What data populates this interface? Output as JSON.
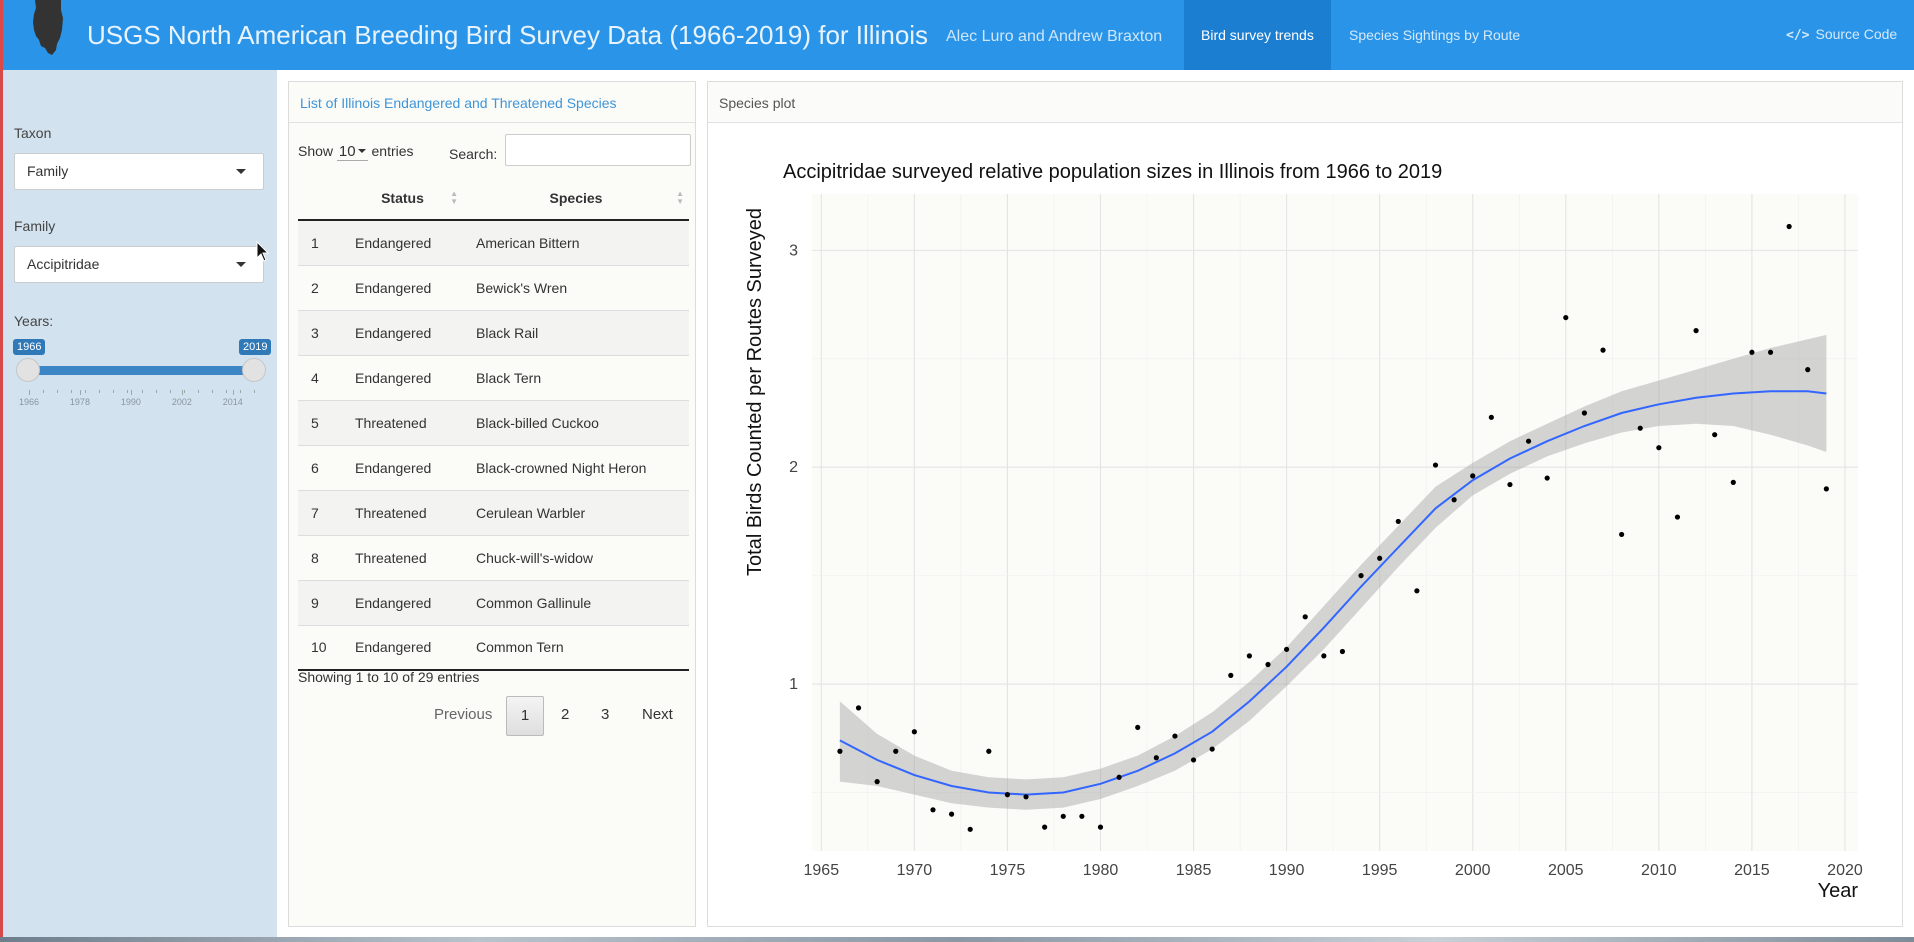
{
  "navbar": {
    "title": "USGS North American Breeding Bird Survey Data (1966-2019) for Illinois",
    "authors": "Alec Luro and Andrew Braxton",
    "tabs": [
      {
        "label": "Bird survey trends",
        "active": true
      },
      {
        "label": "Species Sightings by Route",
        "active": false
      }
    ],
    "source_label": "Source Code",
    "source_icon": "code-icon",
    "logo_icon": "illinois-state-icon",
    "colors": {
      "bar": "#2a95e8",
      "active_tab": "#1c7ed0"
    }
  },
  "sidebar": {
    "taxon_label": "Taxon",
    "taxon_value": "Family",
    "family_label": "Family",
    "family_value": "Accipitridae",
    "years_label": "Years:",
    "years_min": "1966",
    "years_max": "2019",
    "year_ticks": [
      "1966",
      "1978",
      "1990",
      "2002",
      "2014"
    ],
    "background": "#d2e2ef"
  },
  "species_table": {
    "heading": "List of Illinois Endangered and Threatened Species",
    "show_label": "Show",
    "page_length": "10",
    "entries_label": "entries",
    "search_label": "Search:",
    "search_value": "",
    "columns": [
      "",
      "Status",
      "Species"
    ],
    "rows": [
      [
        "1",
        "Endangered",
        "American Bittern"
      ],
      [
        "2",
        "Endangered",
        "Bewick's Wren"
      ],
      [
        "3",
        "Endangered",
        "Black Rail"
      ],
      [
        "4",
        "Endangered",
        "Black Tern"
      ],
      [
        "5",
        "Threatened",
        "Black-billed Cuckoo"
      ],
      [
        "6",
        "Endangered",
        "Black-crowned Night Heron"
      ],
      [
        "7",
        "Threatened",
        "Cerulean Warbler"
      ],
      [
        "8",
        "Threatened",
        "Chuck-will's-widow"
      ],
      [
        "9",
        "Endangered",
        "Common Gallinule"
      ],
      [
        "10",
        "Endangered",
        "Common Tern"
      ]
    ],
    "info": "Showing 1 to 10 of 29 entries",
    "pagination": {
      "previous": "Previous",
      "pages": [
        "1",
        "2",
        "3"
      ],
      "current": "1",
      "next": "Next"
    }
  },
  "plot_panel": {
    "heading": "Species plot"
  },
  "chart_data": {
    "type": "scatter",
    "title": "Accipitridae surveyed relative population sizes in Illinois from 1966 to 2019",
    "xlabel": "Year",
    "ylabel": "Total Birds Counted per Routes Surveyed",
    "xlim": [
      1964.5,
      2020.7
    ],
    "ylim": [
      0.23,
      3.26
    ],
    "x_ticks": [
      1965,
      1970,
      1975,
      1980,
      1985,
      1990,
      1995,
      2000,
      2005,
      2010,
      2015,
      2020
    ],
    "y_ticks": [
      1,
      2,
      3
    ],
    "grid": true,
    "colors": {
      "points": "#000000",
      "smooth_line": "#3366ff",
      "confidence_band": "#999999",
      "panel": "#fbfbf8"
    },
    "series": [
      {
        "kind": "points",
        "x": [
          1966,
          1967,
          1968,
          1969,
          1970,
          1971,
          1972,
          1973,
          1974,
          1975,
          1976,
          1977,
          1978,
          1979,
          1980,
          1981,
          1982,
          1983,
          1984,
          1985,
          1986,
          1987,
          1988,
          1989,
          1990,
          1991,
          1992,
          1993,
          1994,
          1995,
          1996,
          1997,
          1998,
          1999,
          2000,
          2001,
          2002,
          2003,
          2004,
          2005,
          2006,
          2007,
          2008,
          2009,
          2010,
          2011,
          2012,
          2013,
          2014,
          2015,
          2016,
          2017,
          2018,
          2019
        ],
        "y": [
          0.69,
          0.89,
          0.55,
          0.69,
          0.78,
          0.42,
          0.4,
          0.33,
          0.69,
          0.49,
          0.48,
          0.34,
          0.39,
          0.39,
          0.34,
          0.57,
          0.8,
          0.66,
          0.76,
          0.65,
          0.7,
          1.04,
          1.13,
          1.09,
          1.16,
          1.31,
          1.13,
          1.15,
          1.5,
          1.58,
          1.75,
          1.43,
          2.01,
          1.85,
          1.96,
          2.23,
          1.92,
          2.12,
          1.95,
          2.69,
          2.25,
          2.54,
          1.69,
          2.18,
          2.09,
          1.77,
          2.63,
          2.15,
          1.93,
          2.53,
          2.53,
          3.11,
          2.45,
          1.9
        ]
      },
      {
        "kind": "loess",
        "x": [
          1966,
          1968,
          1970,
          1972,
          1974,
          1976,
          1978,
          1980,
          1982,
          1984,
          1986,
          1988,
          1990,
          1992,
          1994,
          1996,
          1998,
          2000,
          2002,
          2004,
          2006,
          2008,
          2010,
          2012,
          2014,
          2016,
          2018,
          2019
        ],
        "y": [
          0.74,
          0.65,
          0.58,
          0.53,
          0.5,
          0.49,
          0.5,
          0.54,
          0.6,
          0.68,
          0.78,
          0.92,
          1.08,
          1.26,
          1.45,
          1.63,
          1.81,
          1.94,
          2.04,
          2.12,
          2.19,
          2.25,
          2.29,
          2.32,
          2.34,
          2.35,
          2.35,
          2.34
        ],
        "lower": [
          0.55,
          0.53,
          0.49,
          0.45,
          0.43,
          0.42,
          0.43,
          0.47,
          0.53,
          0.6,
          0.7,
          0.83,
          0.99,
          1.16,
          1.35,
          1.54,
          1.72,
          1.87,
          1.97,
          2.05,
          2.11,
          2.16,
          2.19,
          2.2,
          2.19,
          2.15,
          2.1,
          2.07
        ],
        "upper": [
          0.92,
          0.77,
          0.67,
          0.6,
          0.57,
          0.56,
          0.57,
          0.61,
          0.67,
          0.76,
          0.87,
          1.01,
          1.17,
          1.36,
          1.55,
          1.73,
          1.91,
          2.02,
          2.12,
          2.2,
          2.28,
          2.35,
          2.4,
          2.45,
          2.5,
          2.55,
          2.59,
          2.61
        ]
      }
    ]
  }
}
